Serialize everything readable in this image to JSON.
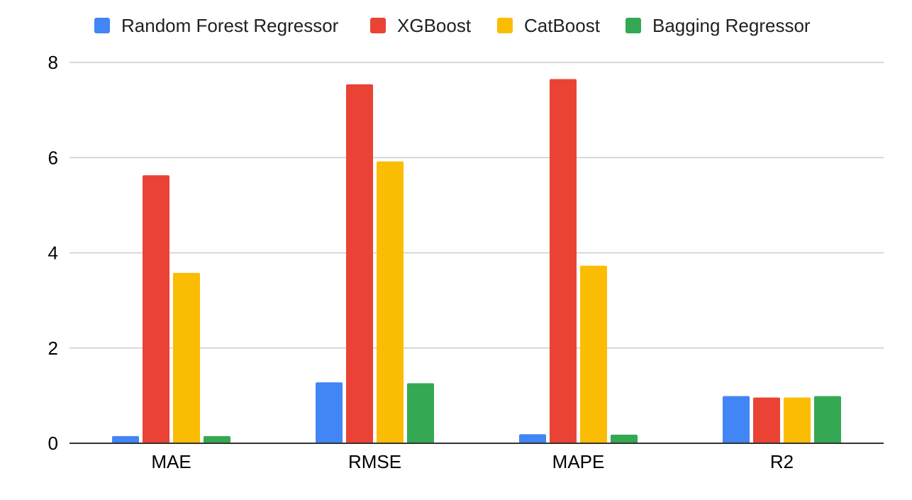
{
  "chart_data": {
    "type": "bar",
    "categories": [
      "MAE",
      "RMSE",
      "MAPE",
      "R2"
    ],
    "series": [
      {
        "name": "Random Forest Regressor",
        "color": "#4285F4",
        "values": [
          0.15,
          1.28,
          0.19,
          0.99
        ]
      },
      {
        "name": "XGBoost",
        "color": "#EA4335",
        "values": [
          5.63,
          7.54,
          7.65,
          0.96
        ]
      },
      {
        "name": "CatBoost",
        "color": "#FBBC04",
        "values": [
          3.58,
          5.92,
          3.73,
          0.96
        ]
      },
      {
        "name": "Bagging Regressor",
        "color": "#34A853",
        "values": [
          0.15,
          1.26,
          0.18,
          0.99
        ]
      }
    ],
    "y_ticks": [
      0,
      2,
      4,
      6,
      8
    ],
    "ylim": [
      0,
      8
    ],
    "grid": true,
    "legend_position": "top"
  }
}
